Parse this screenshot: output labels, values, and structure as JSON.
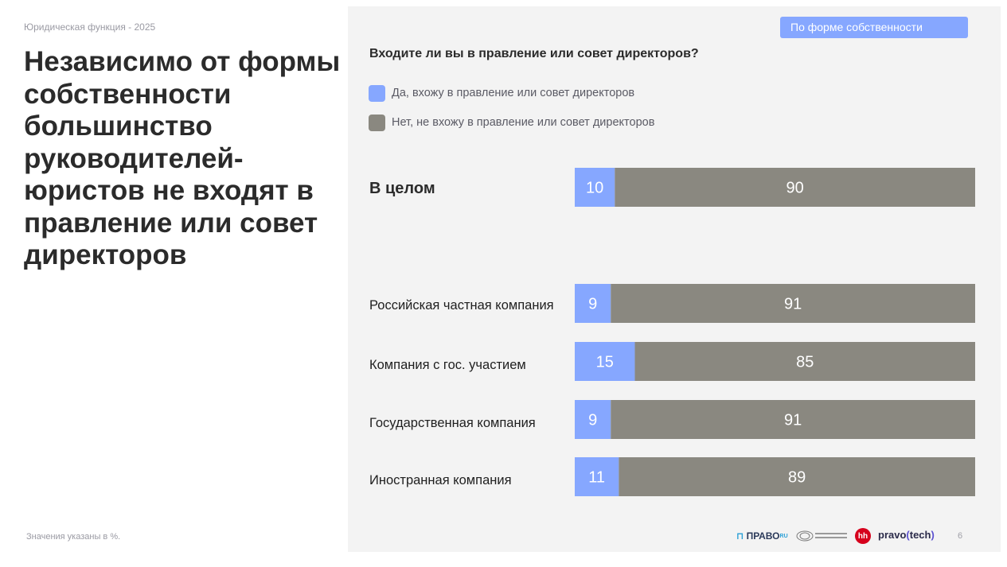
{
  "header": {
    "kicker": "Юридическая функция - 2025",
    "headline": "Независимо от формы собственности большинство руководителей-юристов не входят в правление или совет директоров"
  },
  "filter_button": {
    "label": "По форме собственности"
  },
  "footnote": "Значения указаны в %.",
  "page_number": "6",
  "brands": {
    "pravo": "ПРАВО",
    "pravo_sup": "RU",
    "hh": "hh",
    "tech_pre": "pravo",
    "tech_paren_open": "(",
    "tech_word": "tech",
    "tech_paren_close": ")",
    "lm_icon": "yuridicheskiy-menedzhment-logo-icon"
  },
  "colors": {
    "yes": "#86a7ff",
    "no": "#8a8880",
    "panel": "#f3f3f3"
  },
  "chart_data": {
    "type": "bar",
    "orientation": "horizontal",
    "stacked": true,
    "title": "Входите ли вы в правление или совет директоров?",
    "categories": [
      "В целом",
      "Российская частная компания",
      "Компания с гос. участием",
      "Государственная компания",
      "Иностранная компания"
    ],
    "series": [
      {
        "name": "Да, вхожу в правление или совет директоров",
        "color": "#86a7ff",
        "values": [
          10,
          9,
          15,
          9,
          11
        ]
      },
      {
        "name": "Нет, не вхожу в правление или совет директоров",
        "color": "#8a8880",
        "values": [
          90,
          91,
          85,
          91,
          89
        ]
      }
    ],
    "xlim": [
      0,
      100
    ],
    "legend_position": "top-left",
    "grid": false
  }
}
